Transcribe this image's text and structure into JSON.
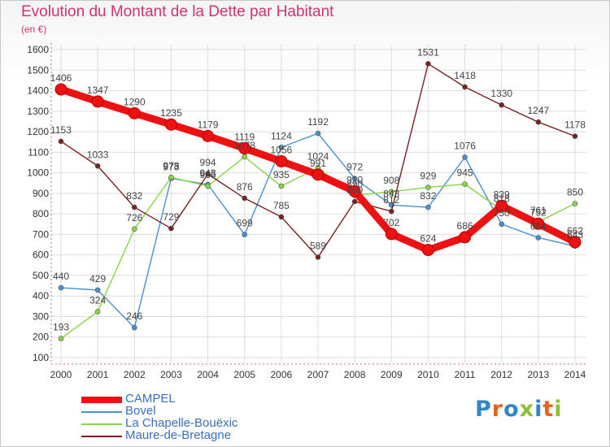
{
  "chart_data": {
    "type": "line",
    "title": "Evolution du Montant de la Dette par Habitant",
    "subtitle": "(en €)",
    "xlabel": "",
    "ylabel": "",
    "ylim": [
      100,
      1600
    ],
    "yticks": [
      100,
      200,
      300,
      400,
      500,
      600,
      700,
      800,
      900,
      1000,
      1100,
      1200,
      1300,
      1400,
      1500,
      1600
    ],
    "grid": true,
    "legend_position": "bottom-left",
    "categories": [
      "2000",
      "2001",
      "2002",
      "2003",
      "2004",
      "2005",
      "2006",
      "2007",
      "2008",
      "2009",
      "2010",
      "2011",
      "2012",
      "2013",
      "2014"
    ],
    "series": [
      {
        "name": "CAMPEL",
        "color": "#ee1111",
        "values": [
          1406,
          1347,
          1290,
          1235,
          1179,
          1119,
          1056,
          991,
          910,
          702,
          624,
          686,
          839,
          752,
          662
        ]
      },
      {
        "name": "Bovel",
        "color": "#4a90d0",
        "values": [
          440,
          429,
          246,
          973,
          943,
          699,
          1124,
          1192,
          972,
          843,
          832,
          1076,
          750,
          684,
          643
        ]
      },
      {
        "name": "La Chapelle-Bouëxic",
        "color": "#8ad448",
        "values": [
          193,
          324,
          726,
          978,
          935,
          1078,
          935,
          1024,
          890,
          908,
          929,
          945,
          818,
          761,
          850
        ]
      },
      {
        "name": "Maure-de-Bretagne",
        "color": "#7a2020",
        "values": [
          1153,
          1033,
          832,
          729,
          994,
          876,
          785,
          589,
          860,
          812,
          1531,
          1418,
          1330,
          1247,
          1178
        ]
      }
    ]
  },
  "logo": {
    "text": "Proxiti",
    "colors": [
      "#2f86c8",
      "#e8641e",
      "#2f86c8",
      "#8ac234",
      "#2f86c8",
      "#e8641e",
      "#8ac234"
    ]
  }
}
